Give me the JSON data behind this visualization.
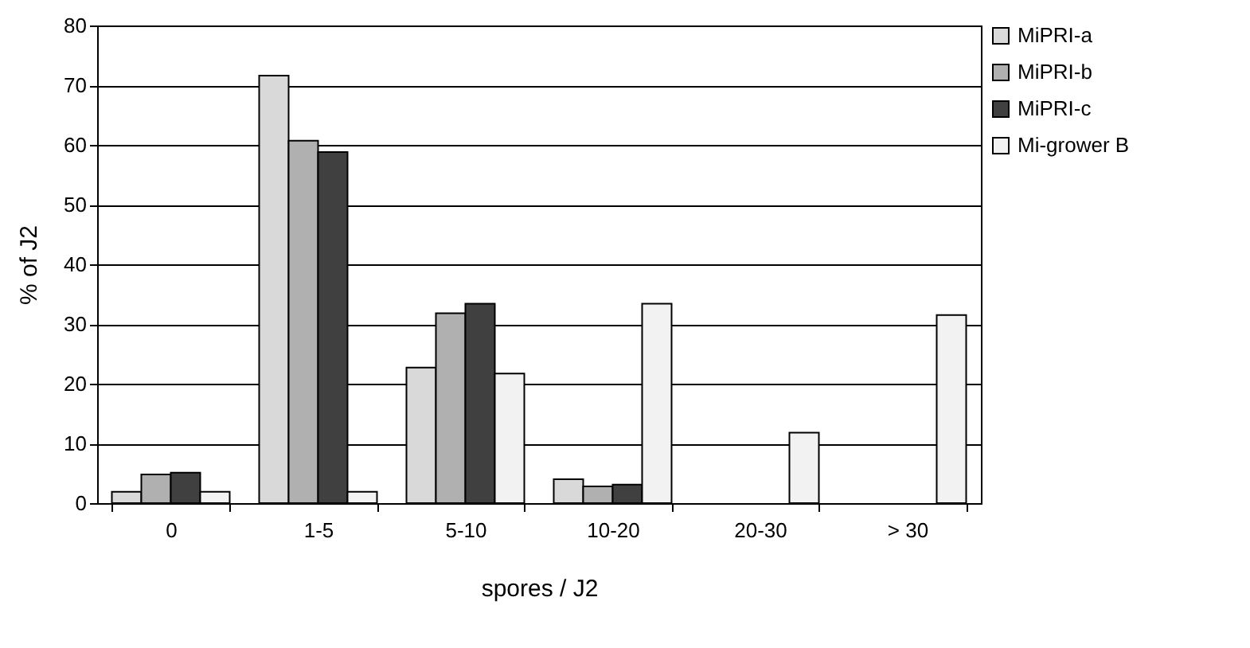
{
  "chart_data": {
    "type": "bar",
    "xlabel": "spores / J2",
    "ylabel": "% of J2",
    "categories": [
      "0",
      "1-5",
      "5-10",
      "10-20",
      "20-30",
      "> 30"
    ],
    "series": [
      {
        "name": "MiPRI-a",
        "color": "#d9d9d9",
        "values": [
          1.9,
          71.6,
          22.7,
          4.0,
          null,
          null
        ]
      },
      {
        "name": "MiPRI-b",
        "color": "#b0b0b0",
        "values": [
          4.8,
          60.7,
          31.8,
          2.8,
          null,
          null
        ]
      },
      {
        "name": "MiPRI-c",
        "color": "#404040",
        "values": [
          5.1,
          58.8,
          33.4,
          3.1,
          null,
          null
        ]
      },
      {
        "name": "Mi-grower B",
        "color": "#f2f2f2",
        "values": [
          1.9,
          1.9,
          21.7,
          33.4,
          11.8,
          31.5
        ]
      }
    ],
    "ylim": [
      0,
      80
    ],
    "yticks": [
      0,
      10,
      20,
      30,
      40,
      50,
      60,
      70,
      80
    ],
    "grid": "y",
    "legend": "top right"
  }
}
